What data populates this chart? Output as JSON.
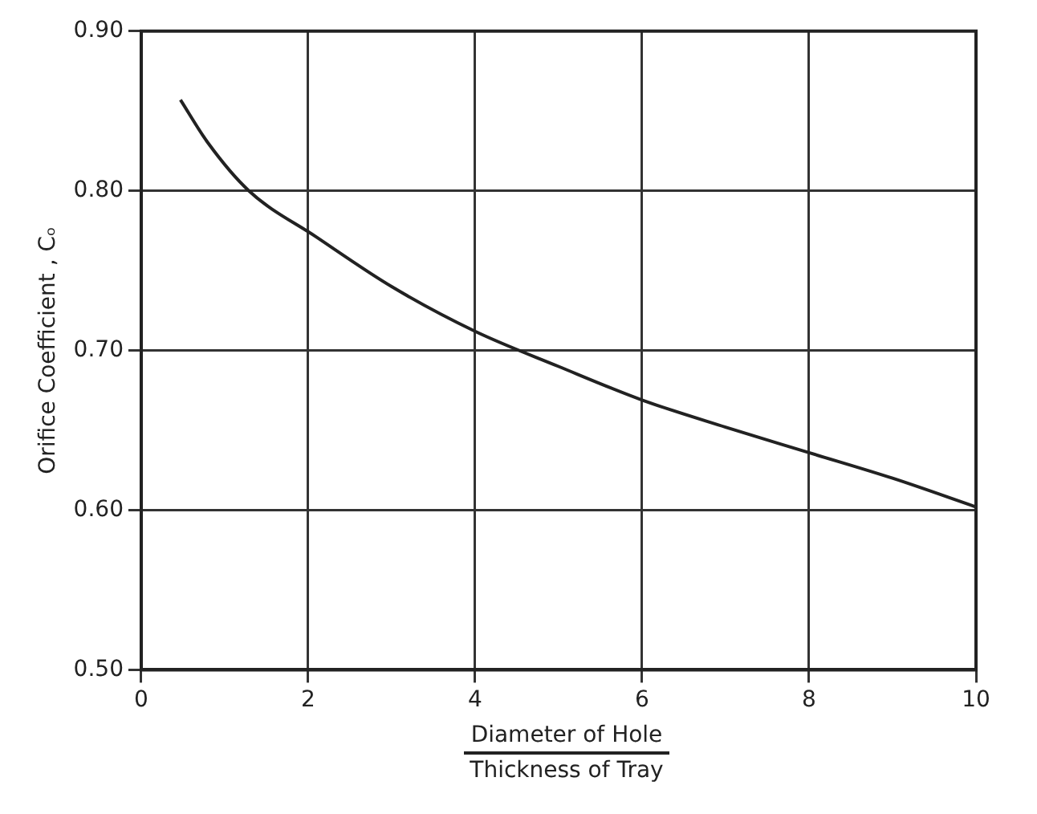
{
  "chart_data": {
    "type": "line",
    "xlabel": "Diameter of Hole\nThickness of Tray",
    "ylabel": "Orifice Coefficient , Cₒ",
    "x": [
      0.47,
      0.8,
      1.29,
      2.1,
      3,
      4,
      5,
      6,
      7,
      8,
      9,
      10
    ],
    "series": [
      {
        "color": "#222222",
        "values": [
          0.857,
          0.83,
          0.8,
          0.771,
          0.74,
          0.712,
          0.69,
          0.669,
          0.652,
          0.636,
          0.62,
          0.602
        ]
      }
    ],
    "xlim": [
      0,
      10
    ],
    "xticks": [
      0,
      2,
      4,
      6,
      8,
      10
    ],
    "ylim": [
      0.5,
      0.9
    ],
    "yticks": [
      {
        "value": 0.5,
        "label": "0.50"
      },
      {
        "value": 0.6,
        "label": "0.60"
      },
      {
        "value": 0.7,
        "label": "0.70"
      },
      {
        "value": 0.8,
        "label": "0.80"
      },
      {
        "value": 0.9,
        "label": "0.90"
      }
    ],
    "grid": true,
    "legend": false,
    "marker": "none",
    "line_style": "solid"
  }
}
